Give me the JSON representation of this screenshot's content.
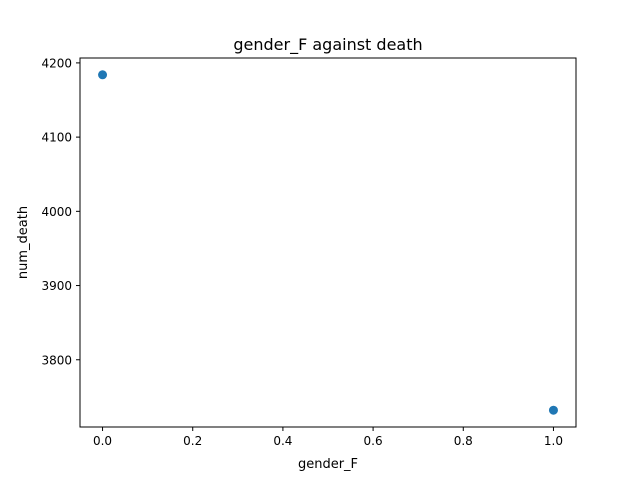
{
  "chart_data": {
    "type": "scatter",
    "title": "gender_F against death",
    "xlabel": "gender_F",
    "ylabel": "num_death",
    "x": [
      0.0,
      1.0
    ],
    "y": [
      4184,
      3732
    ],
    "xlim": [
      -0.05,
      1.05
    ],
    "ylim": [
      3709.4,
      4206.6
    ],
    "xticks": [
      0.0,
      0.2,
      0.4,
      0.6,
      0.8,
      1.0
    ],
    "xtick_labels": [
      "0.0",
      "0.2",
      "0.4",
      "0.6",
      "0.8",
      "1.0"
    ],
    "yticks": [
      3800,
      3900,
      4000,
      4100,
      4200
    ],
    "ytick_labels": [
      "3800",
      "3900",
      "4000",
      "4100",
      "4200"
    ],
    "grid": false,
    "marker_color": "#1f77b4"
  }
}
